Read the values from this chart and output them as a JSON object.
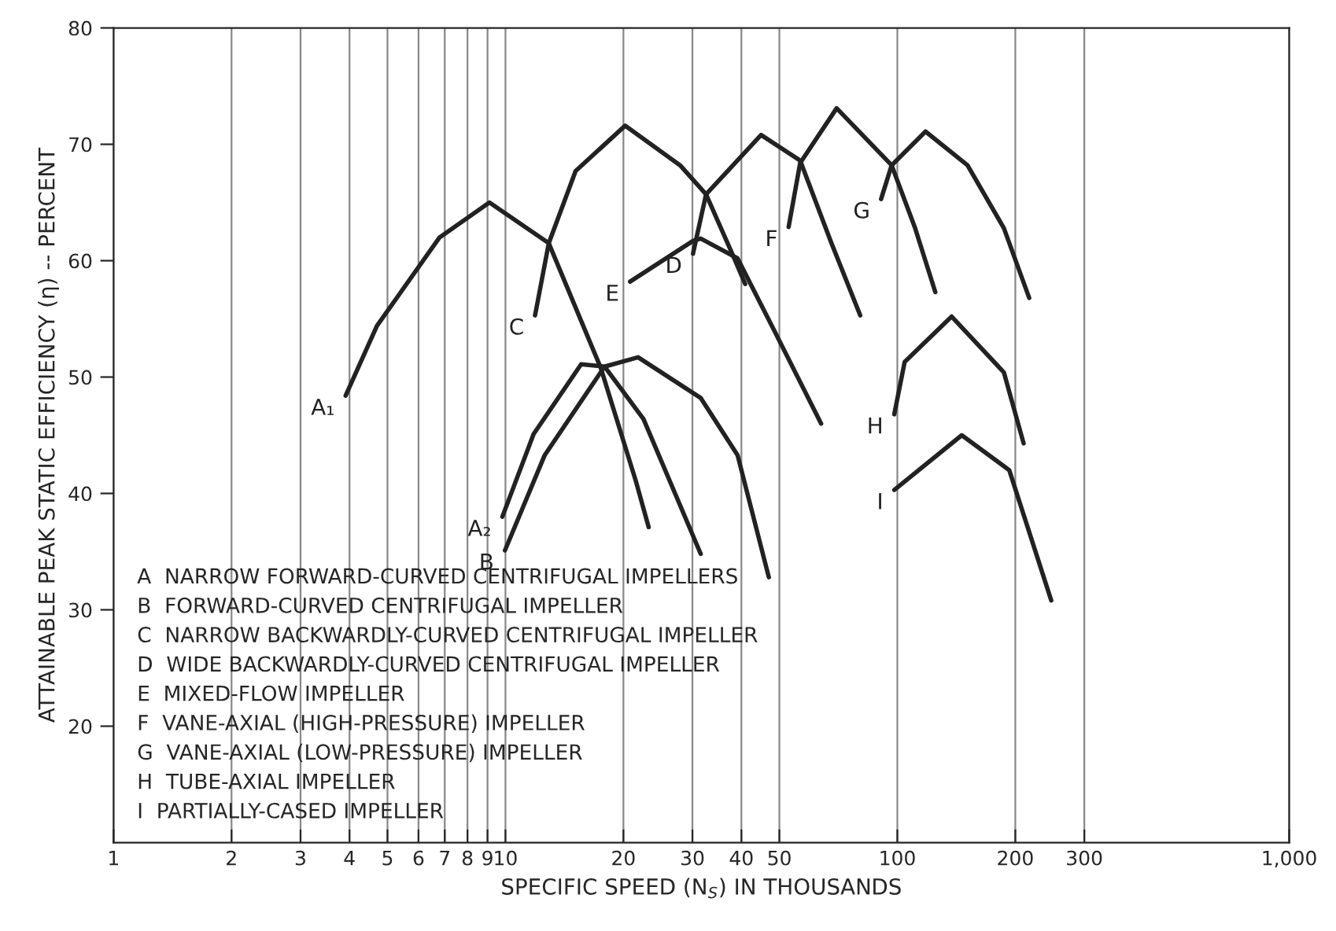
{
  "chart_data": {
    "type": "line",
    "xlabel": "SPECIFIC SPEED (N$_{S}$) IN THOUSANDS",
    "ylabel": "ATTAINABLE PEAK STATIC EFFICIENCY (η) -- PERCENT",
    "log": "x",
    "grid": "x",
    "legend": false,
    "marker": "none",
    "line_style": "solid",
    "xlim": [
      1,
      1000
    ],
    "ylim": [
      10,
      80
    ],
    "xticks": [
      1,
      2,
      3,
      4,
      5,
      6,
      7,
      8,
      9,
      10,
      20,
      30,
      40,
      50,
      100,
      200,
      300,
      {
        "value": 1000,
        "label": "1,000"
      }
    ],
    "yticks": [
      20,
      30,
      40,
      50,
      60,
      70,
      80
    ],
    "series": [
      {
        "name": "A₁",
        "color": "#222222",
        "x": [
          3.91,
          4.7,
          6.79,
          9.1,
          12.9,
          17.5,
          21.5,
          23.2
        ],
        "values": [
          48.4,
          54.4,
          62,
          65,
          61.5,
          50.8,
          41.1,
          37.1
        ]
      },
      {
        "name": "A₂",
        "color": "#222222",
        "x": [
          9.82,
          11.8,
          15.6,
          17.9,
          22.5,
          31.5
        ],
        "values": [
          38.0,
          45.1,
          51.1,
          50.9,
          46.4,
          34.8
        ]
      },
      {
        "name": "B",
        "color": "#222222",
        "x": [
          9.97,
          12.6,
          17.9,
          21.8,
          31.5,
          39.1,
          47
        ],
        "values": [
          35.1,
          43.3,
          50.9,
          51.7,
          48.2,
          43.3,
          32.8
        ]
      },
      {
        "name": "C",
        "color": "#222222",
        "x": [
          11.9,
          12.9,
          15.1,
          20.2,
          27.9,
          32.5,
          37.9,
          40.9
        ],
        "values": [
          55.3,
          61.5,
          67.7,
          71.6,
          68.2,
          65.7,
          60.6,
          58.0
        ]
      },
      {
        "name": "D",
        "color": "#222222",
        "x": [
          30.1,
          32.5,
          44.9,
          56.5,
          67.9,
          80.4
        ],
        "values": [
          60.6,
          65.7,
          70.8,
          68.6,
          61.5,
          55.3
        ]
      },
      {
        "name": "E",
        "color": "#222222",
        "x": [
          20.8,
          30.1,
          31.5,
          39.1,
          48.5,
          63.9
        ],
        "values": [
          58.2,
          61.7,
          61.9,
          60.2,
          54,
          46.0
        ]
      },
      {
        "name": "F",
        "color": "#222222",
        "x": [
          52.8,
          56.5,
          70,
          96.7,
          111,
          125
        ],
        "values": [
          62.9,
          68.4,
          73.1,
          68.2,
          62.8,
          57.3
        ]
      },
      {
        "name": "G",
        "color": "#222222",
        "x": [
          90.9,
          96.7,
          118,
          151,
          187,
          217
        ],
        "values": [
          65.3,
          68.2,
          71.1,
          68.2,
          62.8,
          56.8
        ]
      },
      {
        "name": "H",
        "color": "#222222",
        "x": [
          98.2,
          104.4,
          137.6,
          187,
          210
        ],
        "values": [
          46.8,
          51.3,
          55.2,
          50.4,
          44.3
        ]
      },
      {
        "name": "I",
        "color": "#222222",
        "x": [
          98.2,
          146,
          193,
          247
        ],
        "values": [
          40.3,
          45.0,
          42,
          30.8
        ]
      }
    ],
    "annotations": [
      "A  NARROW FORWARD-CURVED CENTRIFUGAL IMPELLERS",
      "B  FORWARD-CURVED CENTRIFUGAL IMPELLER",
      "C  NARROW BACKWARDLY-CURVED CENTRIFUGAL IMPELLER",
      "D  WIDE BACKWARDLY-CURVED CENTRIFUGAL IMPELLER",
      "E  MIXED-FLOW IMPELLER",
      "F  VANE-AXIAL (HIGH-PRESSURE) IMPELLER",
      "G  VANE-AXIAL (LOW-PRESSURE) IMPELLER",
      "H  TUBE-AXIAL IMPELLER",
      "I  PARTIALLY-CASED IMPELLER"
    ]
  }
}
